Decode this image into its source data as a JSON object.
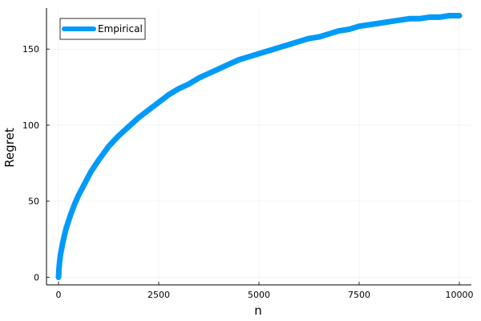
{
  "chart_data": {
    "type": "line",
    "title": "",
    "xlabel": "n",
    "ylabel": "Regret",
    "xlim": [
      -300,
      10300
    ],
    "ylim": [
      -5,
      177
    ],
    "xticks": [
      0,
      2500,
      5000,
      7500,
      10000
    ],
    "xtick_labels": [
      "0",
      "2500",
      "5000",
      "7500",
      "10000"
    ],
    "yticks": [
      0,
      50,
      100,
      150
    ],
    "ytick_labels": [
      "0",
      "50",
      "100",
      "150"
    ],
    "grid": true,
    "legend_position": "top-left",
    "series": [
      {
        "name": "Empirical",
        "color": "#009af9",
        "x": [
          0,
          10,
          25,
          50,
          100,
          150,
          200,
          300,
          400,
          500,
          600,
          700,
          800,
          900,
          1000,
          1250,
          1500,
          1750,
          2000,
          2250,
          2500,
          2750,
          3000,
          3250,
          3500,
          3750,
          4000,
          4250,
          4500,
          4750,
          5000,
          5250,
          5500,
          5750,
          6000,
          6250,
          6500,
          6750,
          7000,
          7250,
          7500,
          7750,
          8000,
          8250,
          8500,
          8750,
          9000,
          9250,
          9500,
          9750,
          10000
        ],
        "y": [
          0,
          5,
          10,
          15,
          22,
          28,
          33,
          41,
          48,
          54,
          59,
          64,
          69,
          73,
          77,
          86,
          93,
          99,
          105,
          110,
          115,
          120,
          124,
          127,
          131,
          134,
          137,
          140,
          143,
          145,
          147,
          149,
          151,
          153,
          155,
          157,
          158,
          160,
          162,
          163,
          165,
          166,
          167,
          168,
          169,
          170,
          170,
          171,
          171,
          172,
          172
        ]
      }
    ]
  }
}
